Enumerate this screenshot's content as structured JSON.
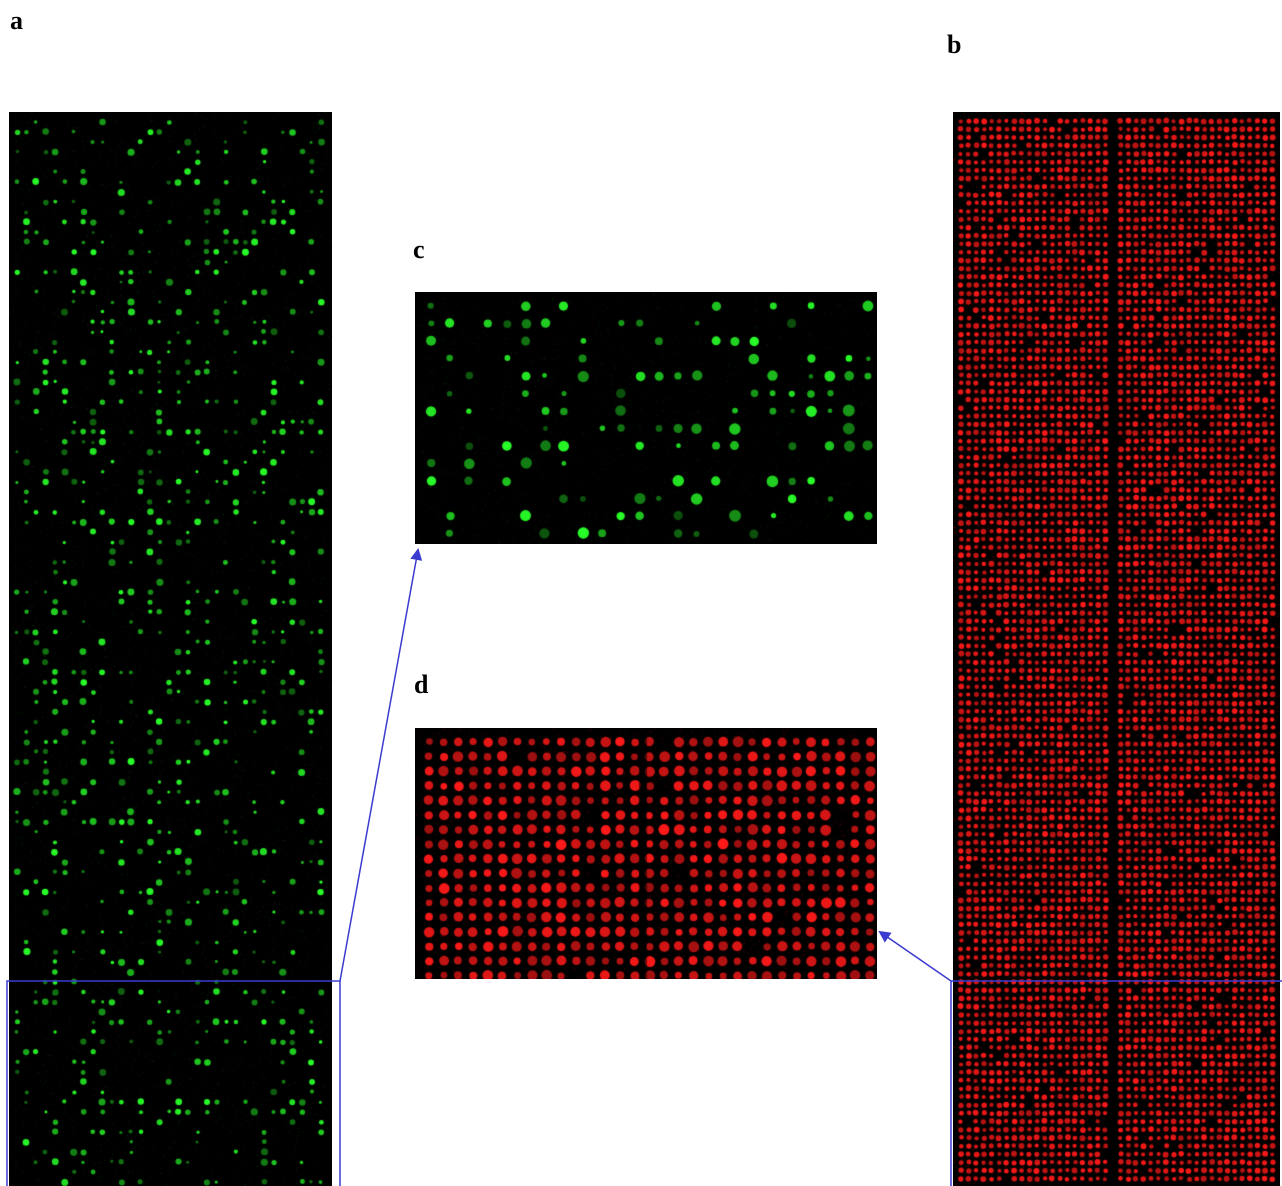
{
  "labels": {
    "a": "a",
    "b": "b",
    "c": "c",
    "d": "d"
  },
  "colors": {
    "green_spots": "#22ff22",
    "red_spots": "#ff1a1a",
    "background": "#000000",
    "annotation": "#3b3bd0"
  },
  "panels": [
    {
      "id": "a",
      "description_icon": "green-microarray-scan"
    },
    {
      "id": "b",
      "description_icon": "red-microarray-scan"
    },
    {
      "id": "c",
      "description_icon": "green-microarray-zoom"
    },
    {
      "id": "d",
      "description_icon": "red-microarray-zoom"
    }
  ]
}
